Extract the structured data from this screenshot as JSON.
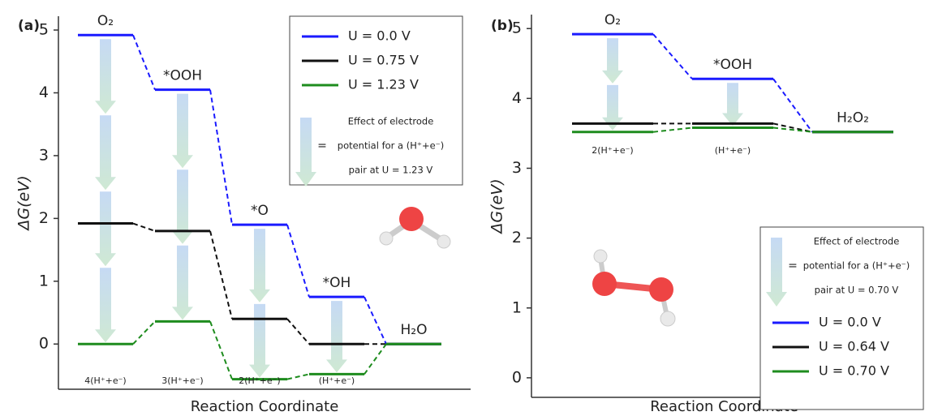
{
  "chart_data": [
    {
      "type": "energy-diagram",
      "panel_label": "(a)",
      "xlabel": "Reaction Coordinate",
      "ylabel": "ΔG(eV)",
      "categories": [
        "O₂",
        "*OOH",
        "*O",
        "*OH",
        "H₂O"
      ],
      "step_labels": [
        "4(H⁺+e⁻)",
        "3(H⁺+e⁻)",
        "2(H⁺+e⁻)",
        "(H⁺+e⁻)"
      ],
      "series": [
        {
          "name": "U = 0.0 V",
          "color": "#1a1aff",
          "values": [
            4.92,
            4.05,
            1.9,
            0.75,
            0
          ]
        },
        {
          "name": "U = 0.75 V",
          "color": "#111111",
          "values": [
            1.92,
            1.8,
            0.4,
            0,
            0
          ]
        },
        {
          "name": "U = 1.23 V",
          "color": "#1e8c1e",
          "values": [
            0,
            0.36,
            -0.56,
            -0.48,
            0
          ]
        }
      ],
      "ylim": [
        -0.72,
        5.22
      ],
      "yticks": [
        0,
        1,
        2,
        3,
        4,
        5
      ],
      "legend": "upper right",
      "legend_note": [
        "Effect of electrode",
        "potential for a (H⁺+e⁻)",
        "pair at U = 1.23 V"
      ],
      "legend_equals": "="
    },
    {
      "type": "energy-diagram",
      "panel_label": "(b)",
      "xlabel": "Reaction Coordinate",
      "ylabel": "ΔG(eV)",
      "categories": [
        "O₂",
        "*OOH",
        "H₂O₂"
      ],
      "step_labels": [
        "2(H⁺+e⁻)",
        "(H⁺+e⁻)"
      ],
      "series": [
        {
          "name": "U = 0.0 V",
          "color": "#1a1aff",
          "values": [
            4.92,
            4.28,
            3.52
          ]
        },
        {
          "name": "U = 0.64 V",
          "color": "#111111",
          "values": [
            3.64,
            3.64,
            3.52
          ]
        },
        {
          "name": "U = 0.70 V",
          "color": "#1e8c1e",
          "values": [
            3.52,
            3.58,
            3.52
          ]
        }
      ],
      "ylim": [
        -0.28,
        5.2
      ],
      "yticks": [
        0,
        1,
        2,
        3,
        4,
        5
      ],
      "legend": "lower right",
      "legend_note": [
        "Effect of electrode",
        "potential for a (H⁺+e⁻)",
        "pair at U = 0.70 V"
      ],
      "legend_equals": "="
    }
  ]
}
